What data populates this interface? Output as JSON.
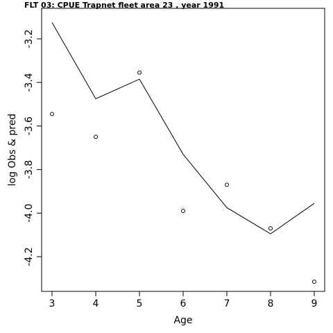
{
  "chart_data": {
    "type": "line",
    "title": "FLT 03:    CPUE       Trapnet   fleet        area        23           , year 1991",
    "xlabel": "Age",
    "ylabel": "log Obs & pred",
    "x": [
      3,
      4,
      5,
      6,
      7,
      8,
      9
    ],
    "xlim": [
      3,
      9
    ],
    "ylim": [
      -4.35,
      -3.1
    ],
    "xticks": [
      "3",
      "4",
      "5",
      "6",
      "7",
      "8",
      "9"
    ],
    "yticks": [
      {
        "value": -3.2,
        "label": "-3.2"
      },
      {
        "value": -3.4,
        "label": "-3.4"
      },
      {
        "value": -3.6,
        "label": "-3.6"
      },
      {
        "value": -3.8,
        "label": "-3.8"
      },
      {
        "value": -4.0,
        "label": "-4.0"
      },
      {
        "value": -4.2,
        "label": "-4.2"
      }
    ],
    "grid": false,
    "legend": "none",
    "series": [
      {
        "style": "line",
        "values": [
          -3.125,
          -3.475,
          -3.385,
          -3.73,
          -3.975,
          -4.095,
          -3.955
        ]
      },
      {
        "style": "points",
        "values": [
          -3.545,
          -3.65,
          -3.355,
          -3.99,
          -3.87,
          -4.07,
          -4.315
        ]
      }
    ],
    "colors": {
      "line": "#000000",
      "points": "#000000",
      "background": "#ffffff"
    }
  }
}
